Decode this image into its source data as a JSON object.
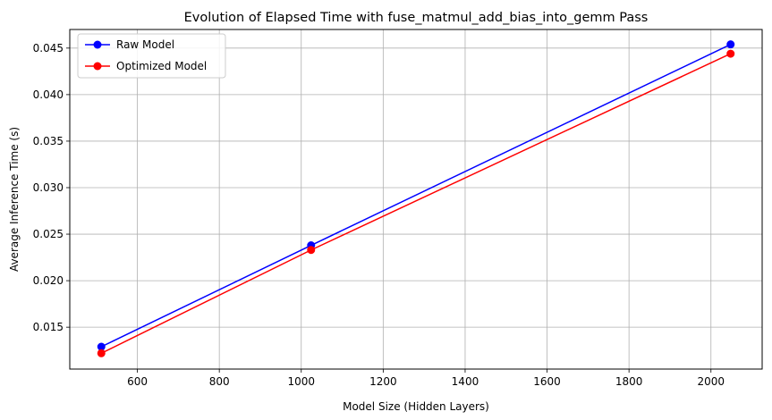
{
  "chart_data": {
    "type": "line",
    "title": "Evolution of Elapsed Time with fuse_matmul_add_bias_into_gemm Pass",
    "xlabel": "Model Size (Hidden Layers)",
    "ylabel": "Average Inference Time (s)",
    "x": [
      512,
      1024,
      2048
    ],
    "xlim": [
      435,
      2125
    ],
    "ylim": [
      0.0105,
      0.047
    ],
    "xticks": [
      600,
      800,
      1000,
      1200,
      1400,
      1600,
      1800,
      2000
    ],
    "yticks": [
      0.015,
      0.02,
      0.025,
      0.03,
      0.035,
      0.04,
      0.045
    ],
    "xtick_labels": [
      "600",
      "800",
      "1000",
      "1200",
      "1400",
      "1600",
      "1800",
      "2000"
    ],
    "ytick_labels": [
      "0.015",
      "0.020",
      "0.025",
      "0.030",
      "0.035",
      "0.040",
      "0.045"
    ],
    "grid": true,
    "legend_position": "top-left",
    "series": [
      {
        "name": "Raw Model",
        "color": "#0000ff",
        "marker": "circle",
        "values": [
          0.0129,
          0.0238,
          0.0454
        ]
      },
      {
        "name": "Optimized Model",
        "color": "#ff0000",
        "marker": "circle",
        "values": [
          0.0122,
          0.0233,
          0.0444
        ]
      }
    ]
  }
}
